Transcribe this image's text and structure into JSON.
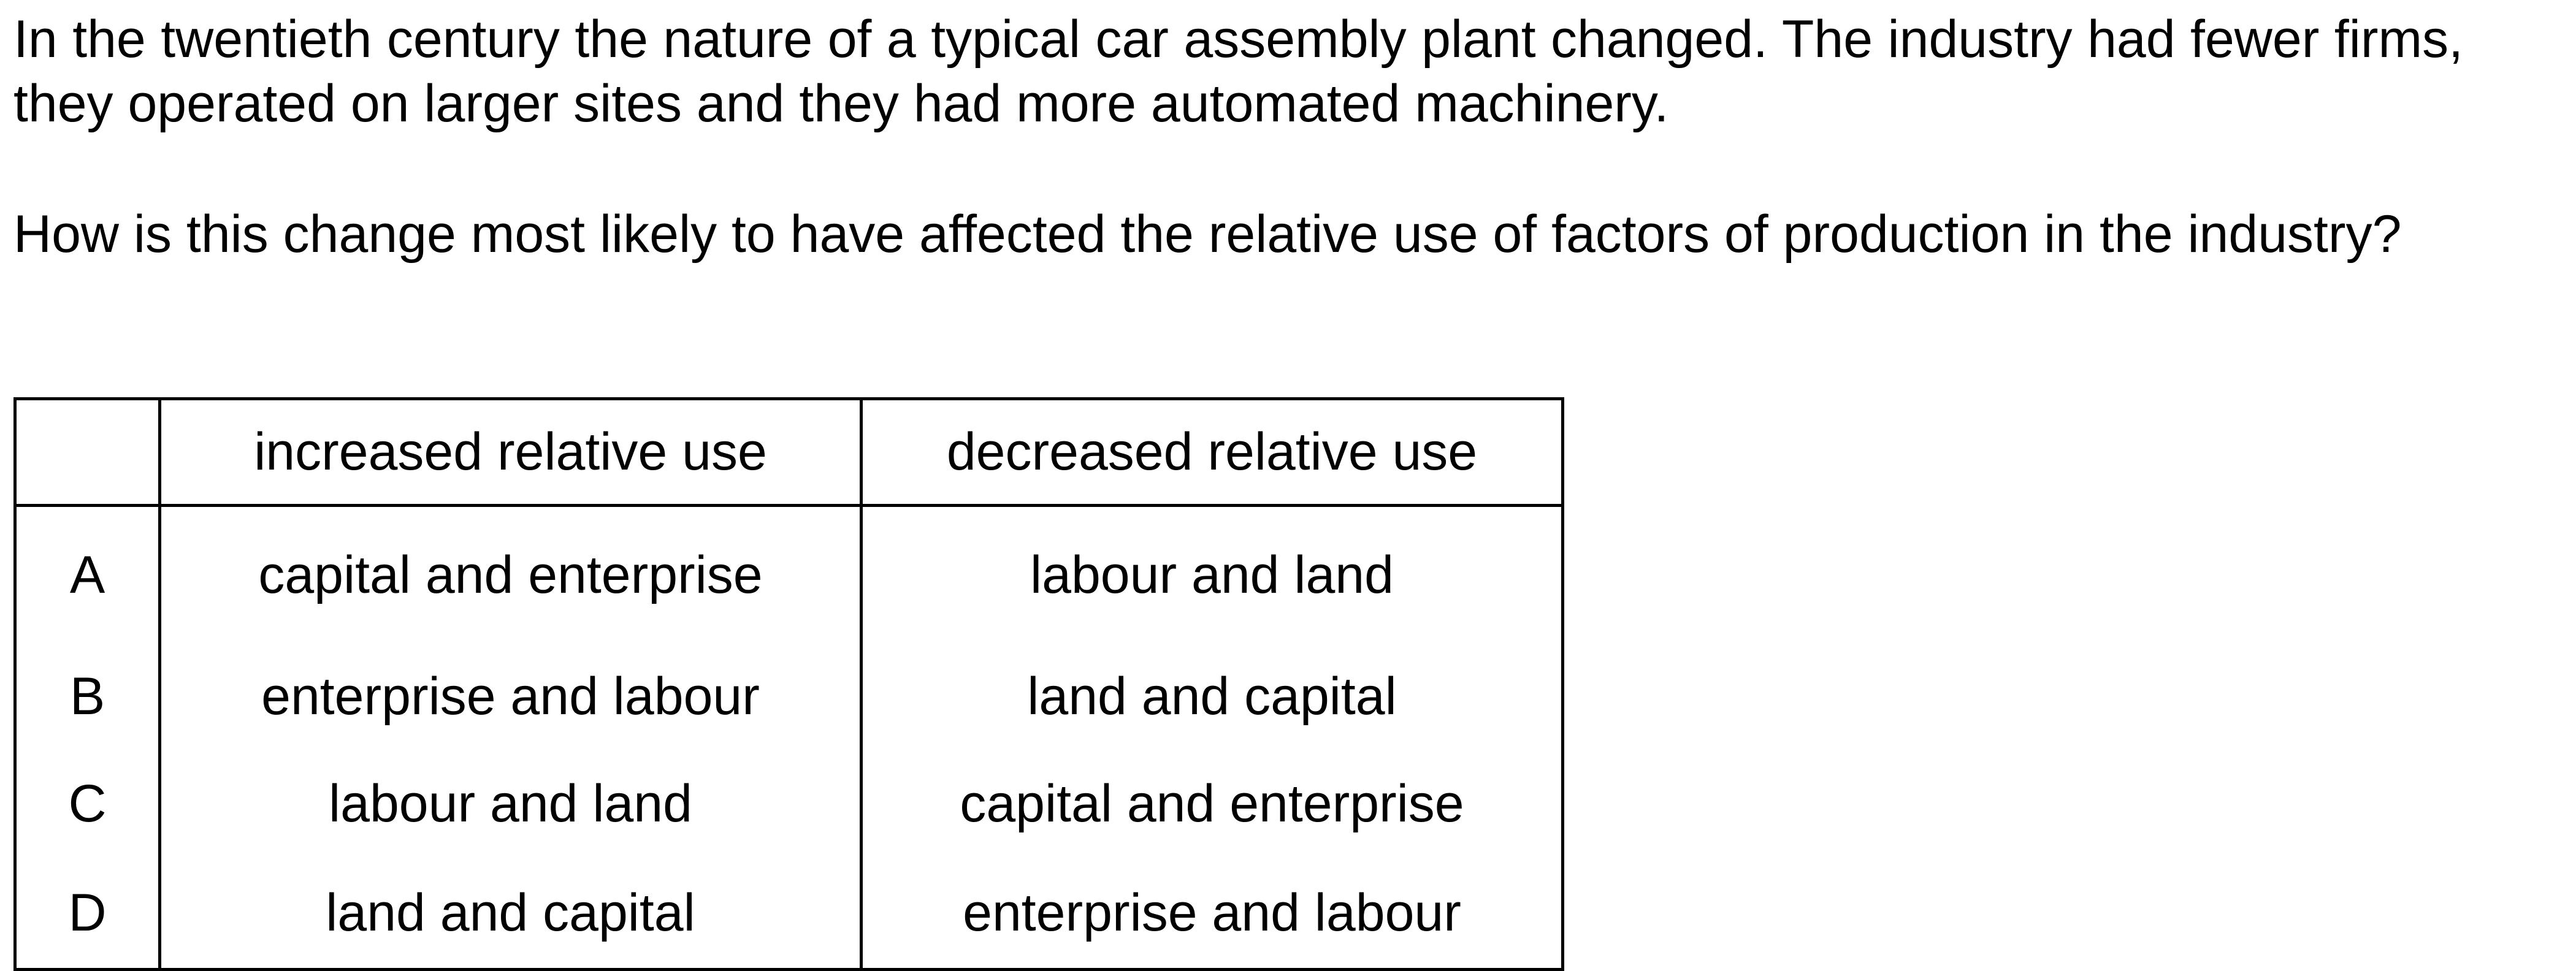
{
  "question": {
    "stem": "In the twentieth century the nature of a typical car assembly plant changed. The industry had fewer firms, they operated on larger sites and they had more automated machinery.",
    "prompt": "How is this change most likely to have affected the relative use of factors of production in the industry?"
  },
  "table": {
    "headers": {
      "letter": "",
      "increased": "increased relative use",
      "decreased": "decreased relative use"
    },
    "options": [
      {
        "letter": "A",
        "increased": "capital and enterprise",
        "decreased": "labour and land"
      },
      {
        "letter": "B",
        "increased": "enterprise and labour",
        "decreased": "land and capital"
      },
      {
        "letter": "C",
        "increased": "labour and land",
        "decreased": "capital and enterprise"
      },
      {
        "letter": "D",
        "increased": "land and capital",
        "decreased": "enterprise and labour"
      }
    ]
  }
}
